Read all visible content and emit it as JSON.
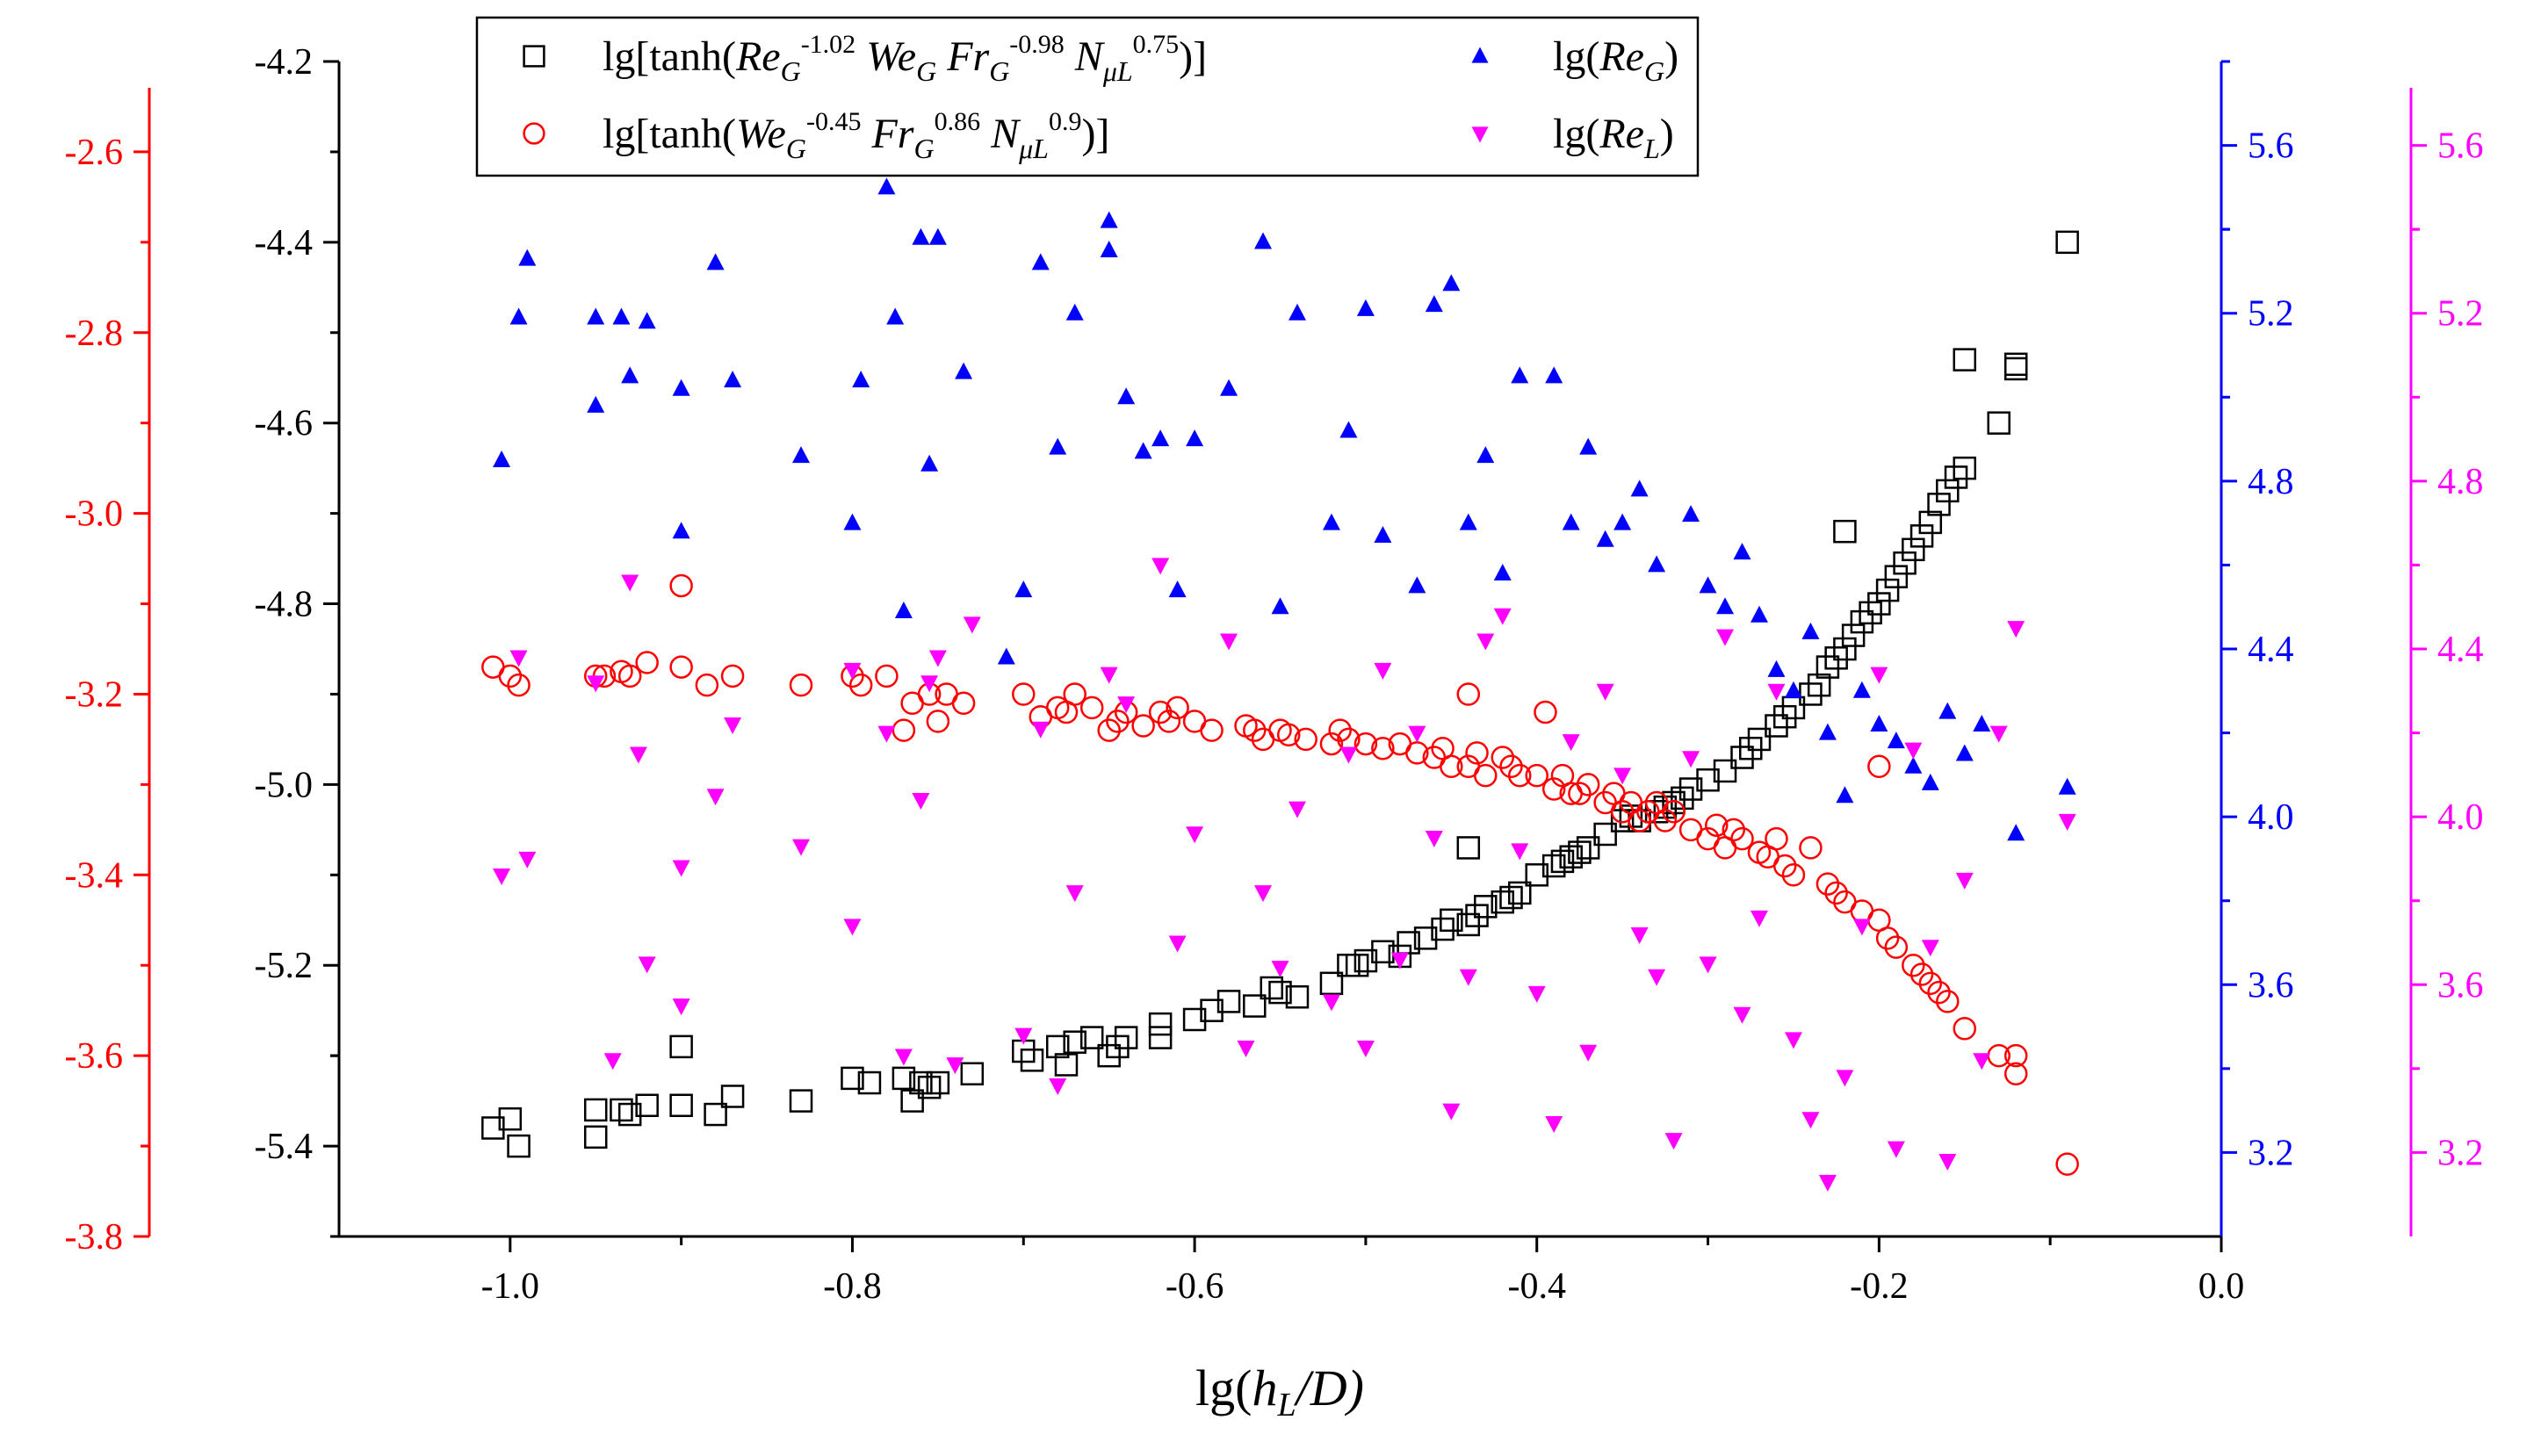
{
  "chart_data": {
    "type": "scatter",
    "xlabel": "lg(h_L/D)",
    "xlabel_parts": {
      "pre": "lg(",
      "h": "h",
      "sub": "L",
      "post": "/D)"
    },
    "xlim": [
      -1.1,
      0.0
    ],
    "x_ticks": [
      -1.0,
      -0.8,
      -0.6,
      -0.4,
      -0.2,
      0.0
    ],
    "x_tick_labels": [
      "-1.0",
      "-0.8",
      "-0.6",
      "-0.4",
      "-0.2",
      "0.0"
    ],
    "axes": {
      "black": {
        "side": "left-inner",
        "color": "#000000",
        "ylim": [
          -5.5,
          -4.2
        ],
        "ticks": [
          -4.2,
          -4.4,
          -4.6,
          -4.8,
          -5.0,
          -5.2,
          -5.4
        ],
        "tick_labels": [
          "-4.2",
          "-4.4",
          "-4.6",
          "-4.8",
          "-5.0",
          "-5.2",
          "-5.4"
        ]
      },
      "red": {
        "side": "left-outer",
        "color": "#ff0000",
        "ylim": [
          -3.8,
          -2.5
        ],
        "ticks": [
          -2.6,
          -2.8,
          -3.0,
          -3.2,
          -3.4,
          -3.6,
          -3.8
        ],
        "tick_labels": [
          "-2.6",
          "-2.8",
          "-3.0",
          "-3.2",
          "-3.4",
          "-3.6",
          "-3.8"
        ]
      },
      "blue": {
        "side": "right-inner",
        "color": "#0000ff",
        "ylim": [
          3.0,
          5.8
        ],
        "ticks": [
          3.2,
          3.6,
          4.0,
          4.4,
          4.8,
          5.2,
          5.6
        ],
        "tick_labels": [
          "3.2",
          "3.6",
          "4.0",
          "4.4",
          "4.8",
          "5.2",
          "5.6"
        ]
      },
      "magenta": {
        "side": "right-outer",
        "color": "#ff00ff",
        "ylim": [
          3.0,
          5.8
        ],
        "ticks": [
          3.2,
          3.6,
          4.0,
          4.4,
          4.8,
          5.2,
          5.6
        ],
        "tick_labels": [
          "3.2",
          "3.6",
          "4.0",
          "4.4",
          "4.8",
          "5.2",
          "5.6"
        ]
      }
    },
    "legend": {
      "placement": "top",
      "entries": [
        {
          "series": "tanh_ReWeFrN",
          "marker": "square",
          "color": "#000000",
          "parts": [
            [
              "t",
              "lg[tanh("
            ],
            [
              "i",
              "Re"
            ],
            [
              "s",
              "G"
            ],
            [
              "p",
              "-1.02"
            ],
            [
              "t",
              " "
            ],
            [
              "i",
              "We"
            ],
            [
              "s",
              "G"
            ],
            [
              "t",
              " "
            ],
            [
              "i",
              "Fr"
            ],
            [
              "s",
              "G"
            ],
            [
              "p",
              "-0.98"
            ],
            [
              "t",
              " "
            ],
            [
              "i",
              "N"
            ],
            [
              "s",
              "μL"
            ],
            [
              "p",
              "0.75"
            ],
            [
              "t",
              ")]"
            ]
          ]
        },
        {
          "series": "lgReG",
          "marker": "triangle-up",
          "color": "#0000ff",
          "parts": [
            [
              "t",
              "lg("
            ],
            [
              "i",
              "Re"
            ],
            [
              "s",
              "G"
            ],
            [
              "t",
              ")"
            ]
          ]
        },
        {
          "series": "tanh_WeFrN",
          "marker": "circle",
          "color": "#ff0000",
          "parts": [
            [
              "t",
              "lg[tanh("
            ],
            [
              "i",
              "We"
            ],
            [
              "s",
              "G"
            ],
            [
              "p",
              "-0.45"
            ],
            [
              "t",
              " "
            ],
            [
              "i",
              "Fr"
            ],
            [
              "s",
              "G"
            ],
            [
              "p",
              "0.86"
            ],
            [
              "t",
              " "
            ],
            [
              "i",
              "N"
            ],
            [
              "s",
              "μL"
            ],
            [
              "p",
              "0.9"
            ],
            [
              "t",
              ")]"
            ]
          ]
        },
        {
          "series": "lgReL",
          "marker": "triangle-down",
          "color": "#ff00ff",
          "parts": [
            [
              "t",
              "lg("
            ],
            [
              "i",
              "Re"
            ],
            [
              "s",
              "L"
            ],
            [
              "t",
              ")"
            ]
          ]
        }
      ]
    },
    "series": [
      {
        "name": "tanh_ReWeFrN",
        "axis": "black",
        "marker": "square",
        "color": "#000000",
        "x": [
          -1.01,
          -1.0,
          -0.995,
          -0.95,
          -0.95,
          -0.935,
          -0.93,
          -0.92,
          -0.9,
          -0.9,
          -0.87,
          -0.88,
          -0.83,
          -0.8,
          -0.79,
          -0.77,
          -0.765,
          -0.76,
          -0.755,
          -0.75,
          -0.73,
          -0.7,
          -0.695,
          -0.68,
          -0.675,
          -0.67,
          -0.66,
          -0.65,
          -0.645,
          -0.64,
          -0.62,
          -0.62,
          -0.6,
          -0.59,
          -0.58,
          -0.565,
          -0.555,
          -0.55,
          -0.54,
          -0.52,
          -0.51,
          -0.505,
          -0.5,
          -0.49,
          -0.48,
          -0.475,
          -0.465,
          -0.455,
          -0.45,
          -0.44,
          -0.435,
          -0.43,
          -0.42,
          -0.415,
          -0.41,
          -0.4,
          -0.39,
          -0.385,
          -0.38,
          -0.375,
          -0.37,
          -0.36,
          -0.35,
          -0.345,
          -0.34,
          -0.33,
          -0.325,
          -0.32,
          -0.315,
          -0.31,
          -0.3,
          -0.29,
          -0.28,
          -0.275,
          -0.27,
          -0.26,
          -0.255,
          -0.25,
          -0.24,
          -0.235,
          -0.23,
          -0.225,
          -0.22,
          -0.215,
          -0.21,
          -0.205,
          -0.2,
          -0.195,
          -0.19,
          -0.185,
          -0.18,
          -0.175,
          -0.17,
          -0.165,
          -0.16,
          -0.155,
          -0.15,
          -0.15,
          -0.13,
          -0.12,
          -0.12,
          -0.09,
          -0.44,
          -0.22
        ],
        "y": [
          -5.38,
          -5.37,
          -5.4,
          -5.36,
          -5.39,
          -5.36,
          -5.365,
          -5.355,
          -5.29,
          -5.355,
          -5.345,
          -5.365,
          -5.35,
          -5.325,
          -5.33,
          -5.325,
          -5.35,
          -5.33,
          -5.335,
          -5.33,
          -5.32,
          -5.295,
          -5.305,
          -5.29,
          -5.31,
          -5.285,
          -5.28,
          -5.3,
          -5.29,
          -5.28,
          -5.265,
          -5.28,
          -5.26,
          -5.25,
          -5.24,
          -5.245,
          -5.225,
          -5.23,
          -5.235,
          -5.22,
          -5.2,
          -5.2,
          -5.195,
          -5.185,
          -5.19,
          -5.175,
          -5.17,
          -5.16,
          -5.15,
          -5.155,
          -5.145,
          -5.135,
          -5.13,
          -5.125,
          -5.12,
          -5.1,
          -5.09,
          -5.085,
          -5.08,
          -5.075,
          -5.07,
          -5.055,
          -5.04,
          -5.035,
          -5.04,
          -5.03,
          -5.025,
          -5.02,
          -5.015,
          -5.005,
          -4.995,
          -4.985,
          -4.97,
          -4.96,
          -4.95,
          -4.935,
          -4.925,
          -4.915,
          -4.9,
          -4.89,
          -4.87,
          -4.86,
          -4.85,
          -4.835,
          -4.82,
          -4.81,
          -4.8,
          -4.785,
          -4.77,
          -4.755,
          -4.74,
          -4.725,
          -4.71,
          -4.69,
          -4.675,
          -4.66,
          -4.65,
          -4.53,
          -4.6,
          -4.535,
          -4.54,
          -4.4,
          -5.07,
          -4.72
        ]
      },
      {
        "name": "tanh_WeFrN",
        "axis": "red",
        "marker": "circle",
        "color": "#ff0000",
        "x": [
          -1.01,
          -1.0,
          -0.995,
          -0.95,
          -0.945,
          -0.935,
          -0.93,
          -0.92,
          -0.9,
          -0.9,
          -0.885,
          -0.87,
          -0.83,
          -0.8,
          -0.795,
          -0.78,
          -0.77,
          -0.765,
          -0.755,
          -0.75,
          -0.745,
          -0.735,
          -0.7,
          -0.69,
          -0.68,
          -0.675,
          -0.67,
          -0.66,
          -0.65,
          -0.645,
          -0.64,
          -0.63,
          -0.62,
          -0.615,
          -0.61,
          -0.6,
          -0.59,
          -0.57,
          -0.565,
          -0.56,
          -0.55,
          -0.545,
          -0.535,
          -0.52,
          -0.515,
          -0.51,
          -0.5,
          -0.49,
          -0.48,
          -0.47,
          -0.46,
          -0.455,
          -0.45,
          -0.44,
          -0.435,
          -0.43,
          -0.42,
          -0.415,
          -0.41,
          -0.4,
          -0.39,
          -0.385,
          -0.38,
          -0.375,
          -0.37,
          -0.36,
          -0.355,
          -0.35,
          -0.345,
          -0.34,
          -0.335,
          -0.33,
          -0.325,
          -0.32,
          -0.31,
          -0.3,
          -0.295,
          -0.29,
          -0.285,
          -0.28,
          -0.27,
          -0.265,
          -0.26,
          -0.255,
          -0.25,
          -0.24,
          -0.23,
          -0.225,
          -0.22,
          -0.21,
          -0.2,
          -0.195,
          -0.19,
          -0.18,
          -0.175,
          -0.17,
          -0.165,
          -0.16,
          -0.15,
          -0.13,
          -0.12,
          -0.12,
          -0.09,
          -0.44,
          -0.395,
          -0.2
        ],
        "y": [
          -3.17,
          -3.18,
          -3.19,
          -3.18,
          -3.18,
          -3.175,
          -3.18,
          -3.165,
          -3.17,
          -3.08,
          -3.19,
          -3.18,
          -3.19,
          -3.18,
          -3.19,
          -3.18,
          -3.24,
          -3.21,
          -3.2,
          -3.23,
          -3.2,
          -3.21,
          -3.2,
          -3.225,
          -3.215,
          -3.22,
          -3.2,
          -3.215,
          -3.24,
          -3.23,
          -3.22,
          -3.235,
          -3.22,
          -3.23,
          -3.215,
          -3.23,
          -3.24,
          -3.235,
          -3.24,
          -3.25,
          -3.24,
          -3.245,
          -3.25,
          -3.255,
          -3.24,
          -3.25,
          -3.255,
          -3.26,
          -3.255,
          -3.265,
          -3.27,
          -3.26,
          -3.28,
          -3.28,
          -3.265,
          -3.29,
          -3.27,
          -3.28,
          -3.29,
          -3.29,
          -3.305,
          -3.29,
          -3.31,
          -3.31,
          -3.3,
          -3.32,
          -3.31,
          -3.33,
          -3.32,
          -3.34,
          -3.33,
          -3.32,
          -3.34,
          -3.33,
          -3.35,
          -3.36,
          -3.345,
          -3.37,
          -3.35,
          -3.36,
          -3.375,
          -3.38,
          -3.36,
          -3.39,
          -3.4,
          -3.37,
          -3.41,
          -3.42,
          -3.43,
          -3.44,
          -3.45,
          -3.47,
          -3.48,
          -3.5,
          -3.51,
          -3.52,
          -3.53,
          -3.54,
          -3.57,
          -3.6,
          -3.62,
          -3.6,
          -3.72,
          -3.2,
          -3.22,
          -3.28
        ]
      },
      {
        "name": "lgReG",
        "axis": "blue",
        "marker": "triangle-up",
        "color": "#0000ff",
        "x": [
          -1.005,
          -0.995,
          -0.99,
          -0.95,
          -0.95,
          -0.935,
          -0.93,
          -0.92,
          -0.9,
          -0.9,
          -0.88,
          -0.87,
          -0.83,
          -0.8,
          -0.795,
          -0.78,
          -0.775,
          -0.77,
          -0.76,
          -0.755,
          -0.75,
          -0.735,
          -0.71,
          -0.7,
          -0.69,
          -0.68,
          -0.67,
          -0.65,
          -0.65,
          -0.64,
          -0.63,
          -0.62,
          -0.61,
          -0.6,
          -0.58,
          -0.56,
          -0.55,
          -0.54,
          -0.52,
          -0.51,
          -0.5,
          -0.49,
          -0.47,
          -0.46,
          -0.45,
          -0.44,
          -0.43,
          -0.42,
          -0.41,
          -0.39,
          -0.38,
          -0.37,
          -0.36,
          -0.35,
          -0.34,
          -0.33,
          -0.31,
          -0.3,
          -0.29,
          -0.28,
          -0.27,
          -0.26,
          -0.25,
          -0.24,
          -0.23,
          -0.22,
          -0.21,
          -0.2,
          -0.19,
          -0.18,
          -0.17,
          -0.16,
          -0.15,
          -0.14,
          -0.12,
          -0.09
        ],
        "y": [
          4.85,
          5.19,
          5.33,
          5.19,
          4.98,
          5.19,
          5.05,
          5.18,
          4.68,
          5.02,
          5.32,
          5.04,
          4.86,
          4.7,
          5.04,
          5.5,
          5.19,
          4.49,
          5.38,
          4.84,
          5.38,
          5.06,
          4.38,
          4.54,
          5.32,
          4.88,
          5.2,
          5.42,
          5.35,
          5.0,
          4.87,
          4.9,
          4.54,
          4.9,
          5.02,
          5.37,
          4.5,
          5.2,
          4.7,
          4.92,
          5.21,
          4.67,
          4.55,
          5.22,
          5.27,
          4.7,
          4.86,
          4.58,
          5.05,
          5.05,
          4.7,
          4.88,
          4.66,
          4.7,
          4.78,
          4.6,
          4.72,
          4.55,
          4.5,
          4.63,
          4.48,
          4.35,
          4.3,
          4.44,
          4.2,
          4.05,
          4.3,
          4.22,
          4.18,
          4.12,
          4.08,
          4.25,
          4.15,
          4.22,
          3.96,
          4.07
        ]
      },
      {
        "name": "lgReL",
        "axis": "magenta",
        "marker": "triangle-down",
        "color": "#ff00ff",
        "x": [
          -1.005,
          -0.995,
          -0.99,
          -0.95,
          -0.94,
          -0.93,
          -0.925,
          -0.92,
          -0.9,
          -0.9,
          -0.88,
          -0.87,
          -0.83,
          -0.8,
          -0.8,
          -0.78,
          -0.77,
          -0.76,
          -0.755,
          -0.75,
          -0.74,
          -0.73,
          -0.7,
          -0.69,
          -0.68,
          -0.67,
          -0.65,
          -0.64,
          -0.62,
          -0.61,
          -0.6,
          -0.58,
          -0.57,
          -0.56,
          -0.55,
          -0.54,
          -0.52,
          -0.51,
          -0.5,
          -0.49,
          -0.48,
          -0.47,
          -0.46,
          -0.45,
          -0.44,
          -0.43,
          -0.42,
          -0.41,
          -0.4,
          -0.39,
          -0.38,
          -0.37,
          -0.36,
          -0.35,
          -0.34,
          -0.33,
          -0.32,
          -0.31,
          -0.3,
          -0.29,
          -0.28,
          -0.27,
          -0.26,
          -0.25,
          -0.24,
          -0.23,
          -0.22,
          -0.21,
          -0.2,
          -0.19,
          -0.18,
          -0.17,
          -0.16,
          -0.15,
          -0.14,
          -0.13,
          -0.12,
          -0.09
        ],
        "y": [
          3.86,
          4.38,
          3.9,
          4.32,
          3.42,
          4.56,
          4.15,
          3.65,
          3.88,
          3.55,
          4.05,
          4.22,
          3.93,
          3.74,
          4.35,
          4.2,
          3.43,
          4.04,
          4.32,
          4.38,
          3.41,
          4.46,
          3.48,
          4.21,
          3.36,
          3.82,
          4.34,
          4.27,
          4.6,
          3.7,
          3.96,
          4.42,
          3.45,
          3.82,
          3.64,
          4.02,
          3.56,
          4.15,
          3.45,
          4.35,
          3.66,
          4.2,
          3.95,
          3.3,
          3.62,
          4.42,
          4.48,
          3.92,
          3.58,
          3.27,
          4.18,
          3.44,
          4.3,
          4.1,
          3.72,
          3.62,
          3.23,
          4.14,
          3.65,
          4.43,
          3.53,
          3.76,
          4.3,
          3.47,
          3.28,
          3.13,
          3.38,
          3.74,
          4.34,
          3.21,
          4.16,
          3.69,
          3.18,
          3.85,
          3.42,
          4.2,
          4.45,
          3.99
        ]
      }
    ]
  }
}
